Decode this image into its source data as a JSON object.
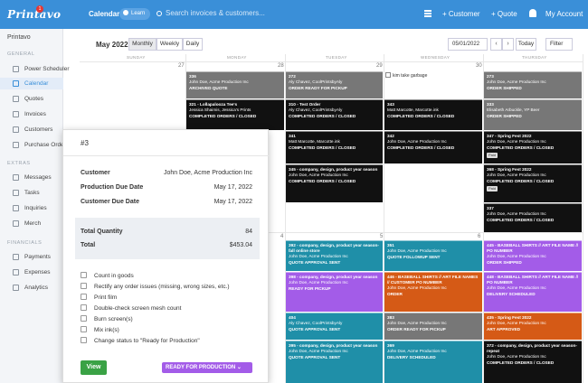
{
  "topbar": {
    "logo": "Printavo",
    "notification_count": "1",
    "title": "Calendar",
    "learn": "Learn",
    "search_placeholder": "Search invoices & customers...",
    "customer_btn": "+ Customer",
    "quote_btn": "+ Quote",
    "account_btn": "My Account"
  },
  "sidebar": {
    "org": "Printavo",
    "general_heading": "GENERAL",
    "items": [
      {
        "label": "Power Scheduler"
      },
      {
        "label": "Calendar"
      },
      {
        "label": "Quotes"
      },
      {
        "label": "Invoices"
      },
      {
        "label": "Customers"
      },
      {
        "label": "Purchase Orders"
      }
    ],
    "extras_heading": "EXTRAS",
    "extras": [
      {
        "label": "Messages"
      },
      {
        "label": "Tasks"
      },
      {
        "label": "Inquiries"
      },
      {
        "label": "Merch"
      }
    ],
    "financials_heading": "FINANCIALS",
    "financials": [
      {
        "label": "Payments"
      },
      {
        "label": "Expenses"
      },
      {
        "label": "Analytics"
      }
    ]
  },
  "calendar": {
    "month": "May 2022",
    "views": [
      "Monthly",
      "Weekly",
      "Daily"
    ],
    "date_input": "05/01/2022",
    "prev": "‹",
    "next": "›",
    "today": "Today",
    "filter": "Filter",
    "day_names": [
      "SUNDAY",
      "MONDAY",
      "TUESDAY",
      "WEDNESDAY",
      "THURSDAY"
    ],
    "day_numbers": [
      "27",
      "28",
      "29",
      "30",
      "4",
      "5",
      "6"
    ],
    "todo": "kim take garbage"
  },
  "events": {
    "e1": {
      "title": "336",
      "line2": "John Doe, Acme Production Inc",
      "status": "ARCHIVED QUOTE"
    },
    "e2": {
      "title": "272",
      "line2": "Aly Chavez, CoolPrintsbyAly",
      "status": "ORDER READY FOR PICKUP"
    },
    "e3": {
      "title": "273",
      "line2": "John Doe, Acme Production Inc",
      "status": "ORDER SHIPPED"
    },
    "e4": {
      "title": "321 - Lollapalooza Tee's",
      "line2": "Jessica Shaimis, Jessica's Prints",
      "status": "COMPLETED ORDERS / CLOSED"
    },
    "e5": {
      "title": "310 - Test Order",
      "line2": "Aly Chavez, CoolPrintsbyAly",
      "status": "COMPLETED ORDERS / CLOSED"
    },
    "e6": {
      "title": "343",
      "line2": "Matt Marcotte, Marcotte.ink",
      "status": "COMPLETED ORDERS / CLOSED"
    },
    "e7": {
      "title": "333",
      "line2": "Elisabeth Arbuckle, YP Beer",
      "status": "ORDER SHIPPED"
    },
    "e8": {
      "title": "341",
      "line2": "Matt Marcotte, Marcotte.ink",
      "status": "COMPLETED ORDERS / CLOSED"
    },
    "e9": {
      "title": "342",
      "line2": "John Doe, Acme Production Inc",
      "status": "COMPLETED ORDERS / CLOSED"
    },
    "e10": {
      "title": "347 - Spring Fest 2022",
      "line2": "John Doe, Acme Production Inc",
      "status": "COMPLETED ORDERS / CLOSED",
      "tag": "Paid"
    },
    "e11": {
      "title": "345 - company, design, product year season",
      "line2": "John Doe, Acme Production Inc",
      "status": "COMPLETED ORDERS / CLOSED"
    },
    "e12": {
      "title": "368 - Spring Fest 2022",
      "line2": "John Doe, Acme Production Inc",
      "status": "COMPLETED ORDERS / CLOSED",
      "tag": "Paid"
    },
    "e13": {
      "title": "337",
      "line2": "John Doe, Acme Production Inc",
      "status": "COMPLETED ORDERS / CLOSED"
    },
    "e14": {
      "title": "392 - company, design, product year season-fall online store",
      "line2": "John Doe, Acme Production Inc",
      "status": "QUOTE APPROVAL SENT"
    },
    "e15": {
      "title": "351",
      "line2": "John Doe, Acme Production Inc",
      "status": "QUOTE FOLLOWUP SENT"
    },
    "e16": {
      "title": "445 - BASEBALL SHIRTS // ART FILE NAME // PO NUMBER",
      "line2": "John Doe, Acme Production Inc",
      "status": "ORDER SHIPPED"
    },
    "e17": {
      "title": "398 - company, design, product year season",
      "line2": "John Doe, Acme Production Inc",
      "status": "READY FOR PICKUP"
    },
    "e18": {
      "title": "446 - BASEBALL SHIRTS // ART FILE NAMES // CUSTOMER PO NUMBER",
      "line2": "John Doe, Acme Production Inc",
      "status": "ORDER"
    },
    "e19": {
      "title": "448 - BASEBALL SHIRTS // ART FILE NAME // PO NUMBER",
      "line2": "John Doe, Acme Production Inc",
      "status": "DELIVERY SCHEDULED"
    },
    "e20": {
      "title": "404",
      "line2": "Aly Chavez, CoolPrintsbyAly",
      "status": "QUOTE APPROVAL SENT"
    },
    "e21": {
      "title": "383",
      "line2": "John Doe, Acme Production Inc",
      "status": "ORDER READY FOR PICKUP"
    },
    "e22": {
      "title": "435 - Spring Fest 2022",
      "line2": "John Doe, Acme Production Inc",
      "status": "ART APPROVED"
    },
    "e23": {
      "title": "395 - company, design, product year season",
      "line2": "John Doe, Acme Production Inc",
      "status": "QUOTE APPROVAL SENT"
    },
    "e24": {
      "title": "369",
      "line2": "John Doe, Acme Production Inc",
      "status": "DELIVERY SCHEDULED"
    },
    "e25": {
      "title": "372 - company, design, product year season-repeat",
      "line2": "John Doe, Acme Production Inc",
      "status": "COMPLETED ORDERS / CLOSED"
    }
  },
  "panel": {
    "number": "#3",
    "customer_label": "Customer",
    "customer_value": "John Doe, Acme Production Inc",
    "prod_due_label": "Production Due Date",
    "prod_due_value": "May 17, 2022",
    "cust_due_label": "Customer Due Date",
    "cust_due_value": "May 17, 2022",
    "qty_label": "Total Quantity",
    "qty_value": "84",
    "total_label": "Total",
    "total_value": "$453.04",
    "tasks": [
      "Count in goods",
      "Rectify any order issues (missing, wrong sizes, etc.)",
      "Print film",
      "Double-check screen mesh count",
      "Burn screen(s)",
      "Mix ink(s)",
      "Change status to \"Ready for Production\""
    ],
    "view_btn": "View",
    "status_btn": "READY FOR PRODUCTION  ⌄"
  },
  "colors": {
    "topbar": "#3a8fd8",
    "purple": "#a35ce8",
    "teal": "#1f8fa8",
    "orange": "#d55a16",
    "green": "#3aa245"
  }
}
